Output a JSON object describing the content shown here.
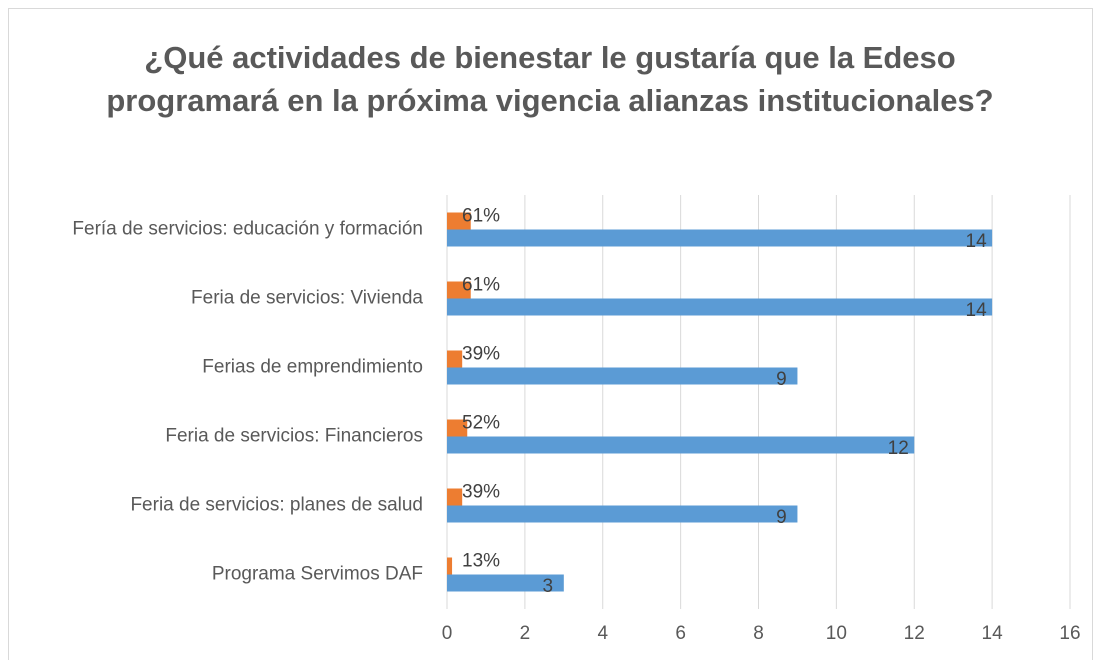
{
  "chart_data": {
    "type": "hbar",
    "title": "¿Qué actividades de bienestar le gustaría que la Edeso programará en la próxima vigencia alianzas institucionales?",
    "categories": [
      "Fería de servicios: educación y formación",
      "Feria de servicios: Vivienda",
      "Ferias de emprendimiento",
      "Feria de servicios: Financieros",
      "Feria de servicios: planes de salud",
      "Programa Servimos DAF"
    ],
    "series": [
      {
        "color": "#ed7d31",
        "values": [
          0.61,
          0.61,
          0.39,
          0.52,
          0.39,
          0.13
        ],
        "value_labels": [
          "61%",
          "61%",
          "39%",
          "52%",
          "39%",
          "13%"
        ]
      },
      {
        "color": "#5b9bd5",
        "values": [
          14,
          14,
          9,
          12,
          9,
          3
        ]
      }
    ],
    "xlim": [
      0,
      16
    ],
    "xticks": [
      0,
      2,
      4,
      6,
      8,
      10,
      12,
      14,
      16
    ],
    "grid": true
  }
}
